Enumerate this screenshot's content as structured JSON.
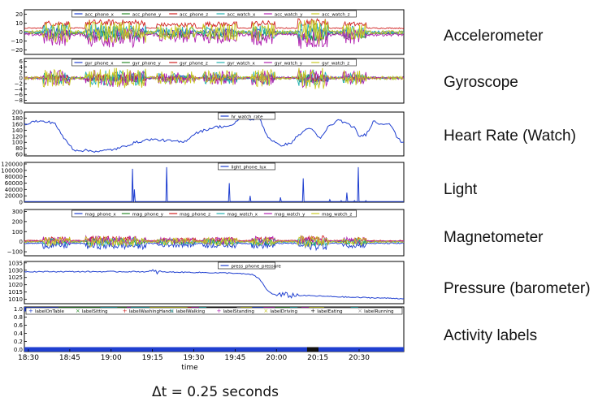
{
  "caption": "Δt = 0.25 seconds",
  "side_labels": [
    "Accelerometer",
    "Gyroscope",
    "Heart Rate (Watch)",
    "Light",
    "Magnetometer",
    "Pressure (barometer)",
    "Activity labels"
  ],
  "chart_data": [
    {
      "type": "line",
      "side_label": "Accelerometer",
      "ylim": [
        -25,
        25
      ],
      "yticks": [
        -20,
        -10,
        0,
        10,
        20
      ],
      "ytick_labels": [
        "−20",
        "−10",
        "0",
        "10",
        "20"
      ],
      "series": [
        {
          "name": "acc_phone_x",
          "color": "#1f3fd0",
          "level": 0,
          "amp": 6
        },
        {
          "name": "acc_phone_y",
          "color": "#2a8a2a",
          "level": -3,
          "amp": 6
        },
        {
          "name": "acc_phone_z",
          "color": "#d02020",
          "level": 8,
          "amp": 4
        },
        {
          "name": "acc_watch_x",
          "color": "#20b0b0",
          "level": 0,
          "amp": 10
        },
        {
          "name": "acc_watch_y",
          "color": "#b020b0",
          "level": -5,
          "amp": 12
        },
        {
          "name": "acc_watch_z",
          "color": "#c8c820",
          "level": 0,
          "amp": 14
        }
      ]
    },
    {
      "type": "line",
      "side_label": "Gyroscope",
      "ylim": [
        -9,
        7
      ],
      "yticks": [
        -8,
        -6,
        -4,
        -2,
        0,
        2,
        4,
        6
      ],
      "ytick_labels": [
        "−8",
        "−6",
        "−4",
        "−2",
        "0",
        "2",
        "4",
        "6"
      ],
      "series": [
        {
          "name": "gyr_phone_x",
          "color": "#1f3fd0",
          "level": 0,
          "amp": 1.5
        },
        {
          "name": "gyr_phone_y",
          "color": "#2a8a2a",
          "level": 0,
          "amp": 1.5
        },
        {
          "name": "gyr_phone_z",
          "color": "#d02020",
          "level": 0,
          "amp": 1.2
        },
        {
          "name": "gyr_watch_x",
          "color": "#20b0b0",
          "level": 0,
          "amp": 3
        },
        {
          "name": "gyr_watch_y",
          "color": "#b020b0",
          "level": 0,
          "amp": 3.5
        },
        {
          "name": "gyr_watch_z",
          "color": "#c8c820",
          "level": 0,
          "amp": 4
        }
      ]
    },
    {
      "type": "line",
      "side_label": "Heart Rate (Watch)",
      "ylim": [
        55,
        200
      ],
      "yticks": [
        60,
        80,
        100,
        120,
        140,
        160,
        180,
        200
      ],
      "ytick_labels": [
        "60",
        "80",
        "100",
        "120",
        "140",
        "160",
        "180",
        "200"
      ],
      "series": [
        {
          "name": "hr_watch_rate",
          "color": "#1f3fd0",
          "points": [
            [
              0,
              160
            ],
            [
              0.03,
              170
            ],
            [
              0.08,
              165
            ],
            [
              0.1,
              120
            ],
            [
              0.13,
              75
            ],
            [
              0.2,
              70
            ],
            [
              0.25,
              80
            ],
            [
              0.28,
              95
            ],
            [
              0.33,
              110
            ],
            [
              0.38,
              105
            ],
            [
              0.42,
              100
            ],
            [
              0.45,
              130
            ],
            [
              0.5,
              150
            ],
            [
              0.55,
              155
            ],
            [
              0.57,
              185
            ],
            [
              0.6,
              175
            ],
            [
              0.62,
              180
            ],
            [
              0.64,
              120
            ],
            [
              0.67,
              90
            ],
            [
              0.7,
              95
            ],
            [
              0.72,
              120
            ],
            [
              0.74,
              140
            ],
            [
              0.75,
              150
            ],
            [
              0.77,
              125
            ],
            [
              0.78,
              110
            ],
            [
              0.8,
              150
            ],
            [
              0.83,
              175
            ],
            [
              0.85,
              160
            ],
            [
              0.87,
              150
            ],
            [
              0.88,
              120
            ],
            [
              0.9,
              125
            ],
            [
              0.92,
              170
            ],
            [
              0.94,
              160
            ],
            [
              0.96,
              165
            ],
            [
              0.97,
              150
            ],
            [
              0.98,
              120
            ],
            [
              0.99,
              105
            ],
            [
              1.0,
              100
            ]
          ]
        }
      ]
    },
    {
      "type": "line",
      "side_label": "Light",
      "ylim": [
        0,
        125000
      ],
      "yticks": [
        0,
        20000,
        40000,
        60000,
        80000,
        100000,
        120000
      ],
      "ytick_labels": [
        "0",
        "20000",
        "40000",
        "60000",
        "80000",
        "100000",
        "120000"
      ],
      "series": [
        {
          "name": "light_phone_lux",
          "color": "#1f3fd0",
          "spikes": [
            [
              0.285,
              105000
            ],
            [
              0.29,
              40000
            ],
            [
              0.375,
              110000
            ],
            [
              0.54,
              60000
            ],
            [
              0.595,
              20000
            ],
            [
              0.675,
              15000
            ],
            [
              0.735,
              75000
            ],
            [
              0.805,
              8000
            ],
            [
              0.835,
              5000
            ],
            [
              0.85,
              30000
            ],
            [
              0.87,
              5000
            ],
            [
              0.88,
              110000
            ],
            [
              0.9,
              5000
            ]
          ]
        }
      ]
    },
    {
      "type": "line",
      "side_label": "Magnetometer",
      "ylim": [
        -140,
        320
      ],
      "yticks": [
        -100,
        0,
        100,
        200,
        300
      ],
      "ytick_labels": [
        "−100",
        "0",
        "100",
        "200",
        "300"
      ],
      "series": [
        {
          "name": "mag_phone_x",
          "color": "#1f3fd0",
          "level": -30,
          "amp": 40
        },
        {
          "name": "mag_phone_y",
          "color": "#2a8a2a",
          "level": 0,
          "amp": 35
        },
        {
          "name": "mag_phone_z",
          "color": "#d02020",
          "level": 20,
          "amp": 30
        },
        {
          "name": "mag_watch_x",
          "color": "#20b0b0",
          "level": 0,
          "amp": 45
        },
        {
          "name": "mag_watch_y",
          "color": "#b020b0",
          "level": 10,
          "amp": 50
        },
        {
          "name": "mag_watch_z",
          "color": "#c8c820",
          "level": 0,
          "amp": 60
        }
      ]
    },
    {
      "type": "line",
      "side_label": "Pressure (barometer)",
      "ylim": [
        1007,
        1036
      ],
      "yticks": [
        1010,
        1015,
        1020,
        1025,
        1030,
        1035
      ],
      "ytick_labels": [
        "1010",
        "1015",
        "1020",
        "1025",
        "1030",
        "1035"
      ],
      "series": [
        {
          "name": "press_phone_pressure",
          "color": "#1f3fd0",
          "points": [
            [
              0,
              1029
            ],
            [
              0.3,
              1029
            ],
            [
              0.45,
              1028.5
            ],
            [
              0.55,
              1028
            ],
            [
              0.6,
              1027
            ],
            [
              0.62,
              1024
            ],
            [
              0.64,
              1016
            ],
            [
              0.66,
              1013
            ],
            [
              0.75,
              1012.5
            ],
            [
              0.85,
              1011.5
            ],
            [
              1.0,
              1010.5
            ]
          ]
        }
      ]
    },
    {
      "type": "scatter",
      "side_label": "Activity labels",
      "ylim": [
        -0.05,
        1.05
      ],
      "yticks": [
        0.0,
        0.2,
        0.4,
        0.6,
        0.8,
        1.0
      ],
      "ytick_labels": [
        "0.0",
        "0.2",
        "0.4",
        "0.6",
        "0.8",
        "1.0"
      ],
      "xlabel": "time",
      "xtick_labels": [
        "18:30",
        "18:45",
        "19:00",
        "19:15",
        "19:30",
        "19:45",
        "20:00",
        "20:15",
        "20:30"
      ],
      "series": [
        {
          "name": "labelOnTable",
          "marker": "+",
          "color": "#1f3fd0",
          "segments": [
            [
              0.0,
              0.09
            ],
            [
              0.12,
              0.14
            ],
            [
              0.6,
              0.63
            ]
          ]
        },
        {
          "name": "labelSitting",
          "marker": "×",
          "color": "#2a8a2a",
          "segments": [
            [
              0.09,
              0.2
            ],
            [
              0.245,
              0.27
            ],
            [
              0.66,
              0.7
            ]
          ]
        },
        {
          "name": "labelWashingHands",
          "marker": "+",
          "color": "#d02020",
          "segments": [
            [
              0.43,
              0.44
            ]
          ]
        },
        {
          "name": "labelWalking",
          "marker": "×",
          "color": "#20b0b0",
          "segments": [
            [
              0.2,
              0.245
            ],
            [
              0.28,
              0.33
            ],
            [
              0.46,
              0.48
            ],
            [
              0.7,
              0.72
            ],
            [
              0.86,
              0.88
            ]
          ]
        },
        {
          "name": "labelStanding",
          "marker": "+",
          "color": "#b020b0",
          "segments": [
            [
              0.27,
              0.28
            ],
            [
              0.44,
              0.46
            ],
            [
              0.63,
              0.66
            ],
            [
              0.73,
              0.75
            ]
          ]
        },
        {
          "name": "labelDriving",
          "marker": "×",
          "color": "#c8c820",
          "segments": [
            [
              0.33,
              0.43
            ],
            [
              0.57,
              0.6
            ],
            [
              0.75,
              0.79
            ]
          ]
        },
        {
          "name": "labelEating",
          "marker": "+",
          "color": "#111111",
          "segments": [
            [
              0.48,
              0.56
            ]
          ]
        },
        {
          "name": "labelRunning",
          "marker": "×",
          "color": "#999999",
          "segments": [
            [
              0.56,
              0.57
            ]
          ]
        }
      ],
      "bottom_bar": {
        "color": "#1f3fd0",
        "dark_segment": [
          0.745,
          0.775
        ]
      }
    }
  ]
}
